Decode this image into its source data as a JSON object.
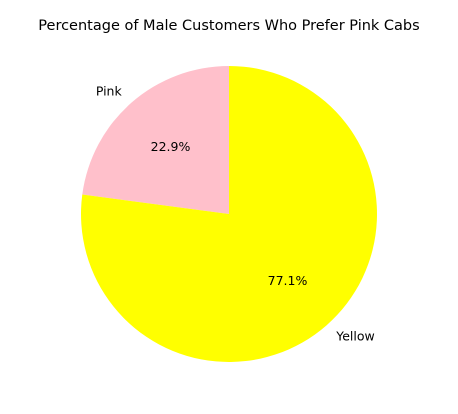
{
  "chart_data": {
    "type": "pie",
    "title": "Percentage of Male Customers Who Prefer Pink Cabs",
    "categories": [
      "Pink",
      "Yellow"
    ],
    "values": [
      22.9,
      77.1
    ],
    "value_labels": [
      "22.9%",
      "77.1%"
    ],
    "colors": [
      "#ffc0cb",
      "#ffff00"
    ],
    "start_angle_deg": 90,
    "direction": "counterclockwise",
    "legend": "none"
  }
}
